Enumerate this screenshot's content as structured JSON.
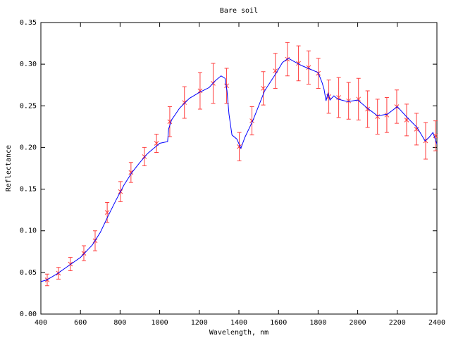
{
  "chart_data": {
    "type": "line-errorbar",
    "title": "Bare soil",
    "x_label": "Wavelength, nm",
    "y_label": "Reflectance",
    "xlim": [
      400,
      2400
    ],
    "ylim": [
      0,
      0.35
    ],
    "xticks": [
      400,
      600,
      800,
      1000,
      1200,
      1400,
      1600,
      1800,
      2000,
      2200,
      2400
    ],
    "yticks": [
      {
        "value": 0,
        "label": "0.00"
      },
      0.05,
      {
        "value": 0.1,
        "label": "0.10"
      },
      0.15,
      {
        "value": 0.2,
        "label": "0.20"
      },
      0.25,
      {
        "value": 0.3,
        "label": "0.30"
      },
      0.35
    ],
    "line": {
      "color": "#0000ff",
      "x": [
        400,
        430,
        480,
        540,
        600,
        660,
        700,
        740,
        780,
        820,
        860,
        900,
        940,
        980,
        1000,
        1040,
        1045,
        1060,
        1100,
        1150,
        1200,
        1250,
        1280,
        1310,
        1330,
        1340,
        1350,
        1365,
        1390,
        1410,
        1430,
        1450,
        1470,
        1500,
        1530,
        1560,
        1590,
        1620,
        1650,
        1680,
        1720,
        1760,
        1800,
        1820,
        1830,
        1840,
        1850,
        1860,
        1880,
        1900,
        1950,
        2000,
        2050,
        2100,
        2150,
        2200,
        2250,
        2300,
        2320,
        2340,
        2360,
        2380,
        2400
      ],
      "values": [
        0.039,
        0.041,
        0.048,
        0.058,
        0.068,
        0.083,
        0.098,
        0.118,
        0.137,
        0.155,
        0.17,
        0.182,
        0.193,
        0.201,
        0.205,
        0.207,
        0.222,
        0.233,
        0.247,
        0.259,
        0.266,
        0.272,
        0.28,
        0.286,
        0.283,
        0.268,
        0.24,
        0.215,
        0.21,
        0.199,
        0.212,
        0.222,
        0.232,
        0.25,
        0.268,
        0.279,
        0.29,
        0.302,
        0.307,
        0.303,
        0.298,
        0.294,
        0.29,
        0.278,
        0.27,
        0.256,
        0.265,
        0.257,
        0.262,
        0.258,
        0.255,
        0.257,
        0.247,
        0.238,
        0.24,
        0.249,
        0.236,
        0.224,
        0.216,
        0.208,
        0.212,
        0.218,
        0.204
      ]
    },
    "errorbars": {
      "color": "#ff4040",
      "x": [
        432,
        489,
        549,
        617,
        674,
        735,
        802,
        855,
        923,
        984,
        1051,
        1125,
        1204,
        1270,
        1338,
        1402,
        1466,
        1523,
        1584,
        1645,
        1701,
        1752,
        1801,
        1854,
        1904,
        1954,
        2004,
        2050,
        2100,
        2147,
        2197,
        2247,
        2297,
        2343,
        2393
      ],
      "values": [
        0.041,
        0.049,
        0.06,
        0.073,
        0.088,
        0.122,
        0.147,
        0.17,
        0.189,
        0.205,
        0.231,
        0.254,
        0.268,
        0.277,
        0.274,
        0.201,
        0.232,
        0.271,
        0.292,
        0.306,
        0.301,
        0.296,
        0.289,
        0.261,
        0.26,
        0.256,
        0.258,
        0.246,
        0.237,
        0.239,
        0.249,
        0.233,
        0.222,
        0.208,
        0.214
      ],
      "errors": [
        0.007,
        0.007,
        0.008,
        0.009,
        0.012,
        0.012,
        0.012,
        0.012,
        0.011,
        0.011,
        0.018,
        0.019,
        0.022,
        0.024,
        0.021,
        0.017,
        0.017,
        0.02,
        0.021,
        0.02,
        0.021,
        0.02,
        0.018,
        0.02,
        0.024,
        0.022,
        0.025,
        0.022,
        0.021,
        0.021,
        0.02,
        0.019,
        0.019,
        0.022,
        0.018
      ]
    }
  }
}
